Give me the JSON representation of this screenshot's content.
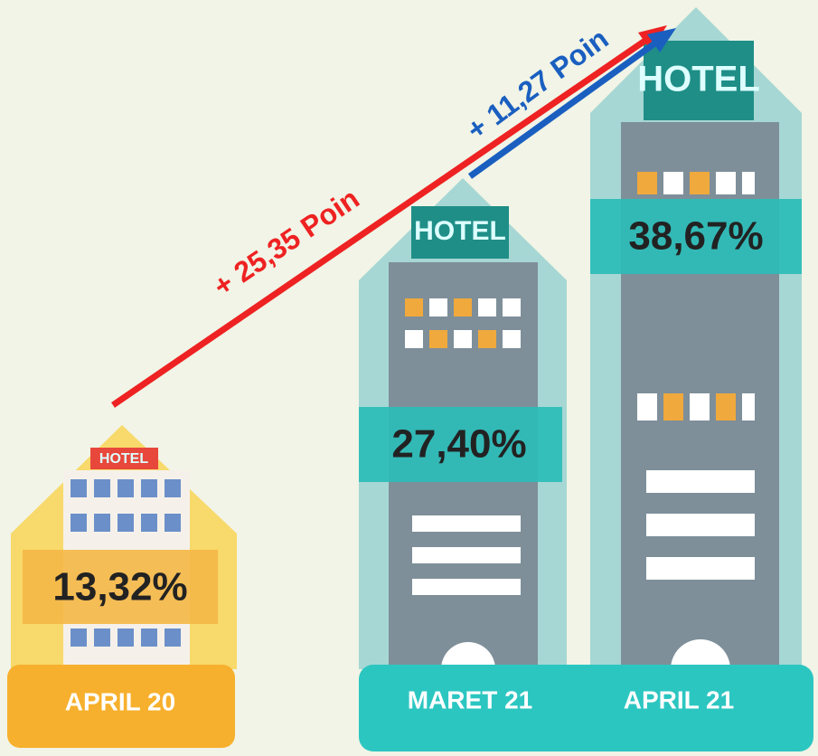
{
  "buildings": [
    {
      "sign": "HOTEL",
      "value": "13,32%",
      "label": "APRIL 20"
    },
    {
      "sign": "HOTEL",
      "value": "27,40%",
      "label": "MARET 21"
    },
    {
      "sign": "HOTEL",
      "value": "38,67%",
      "label": "APRIL 21"
    }
  ],
  "arrows": [
    {
      "label": "+ 25,35 Poin"
    },
    {
      "label": "+ 11,27 Poin"
    }
  ]
}
